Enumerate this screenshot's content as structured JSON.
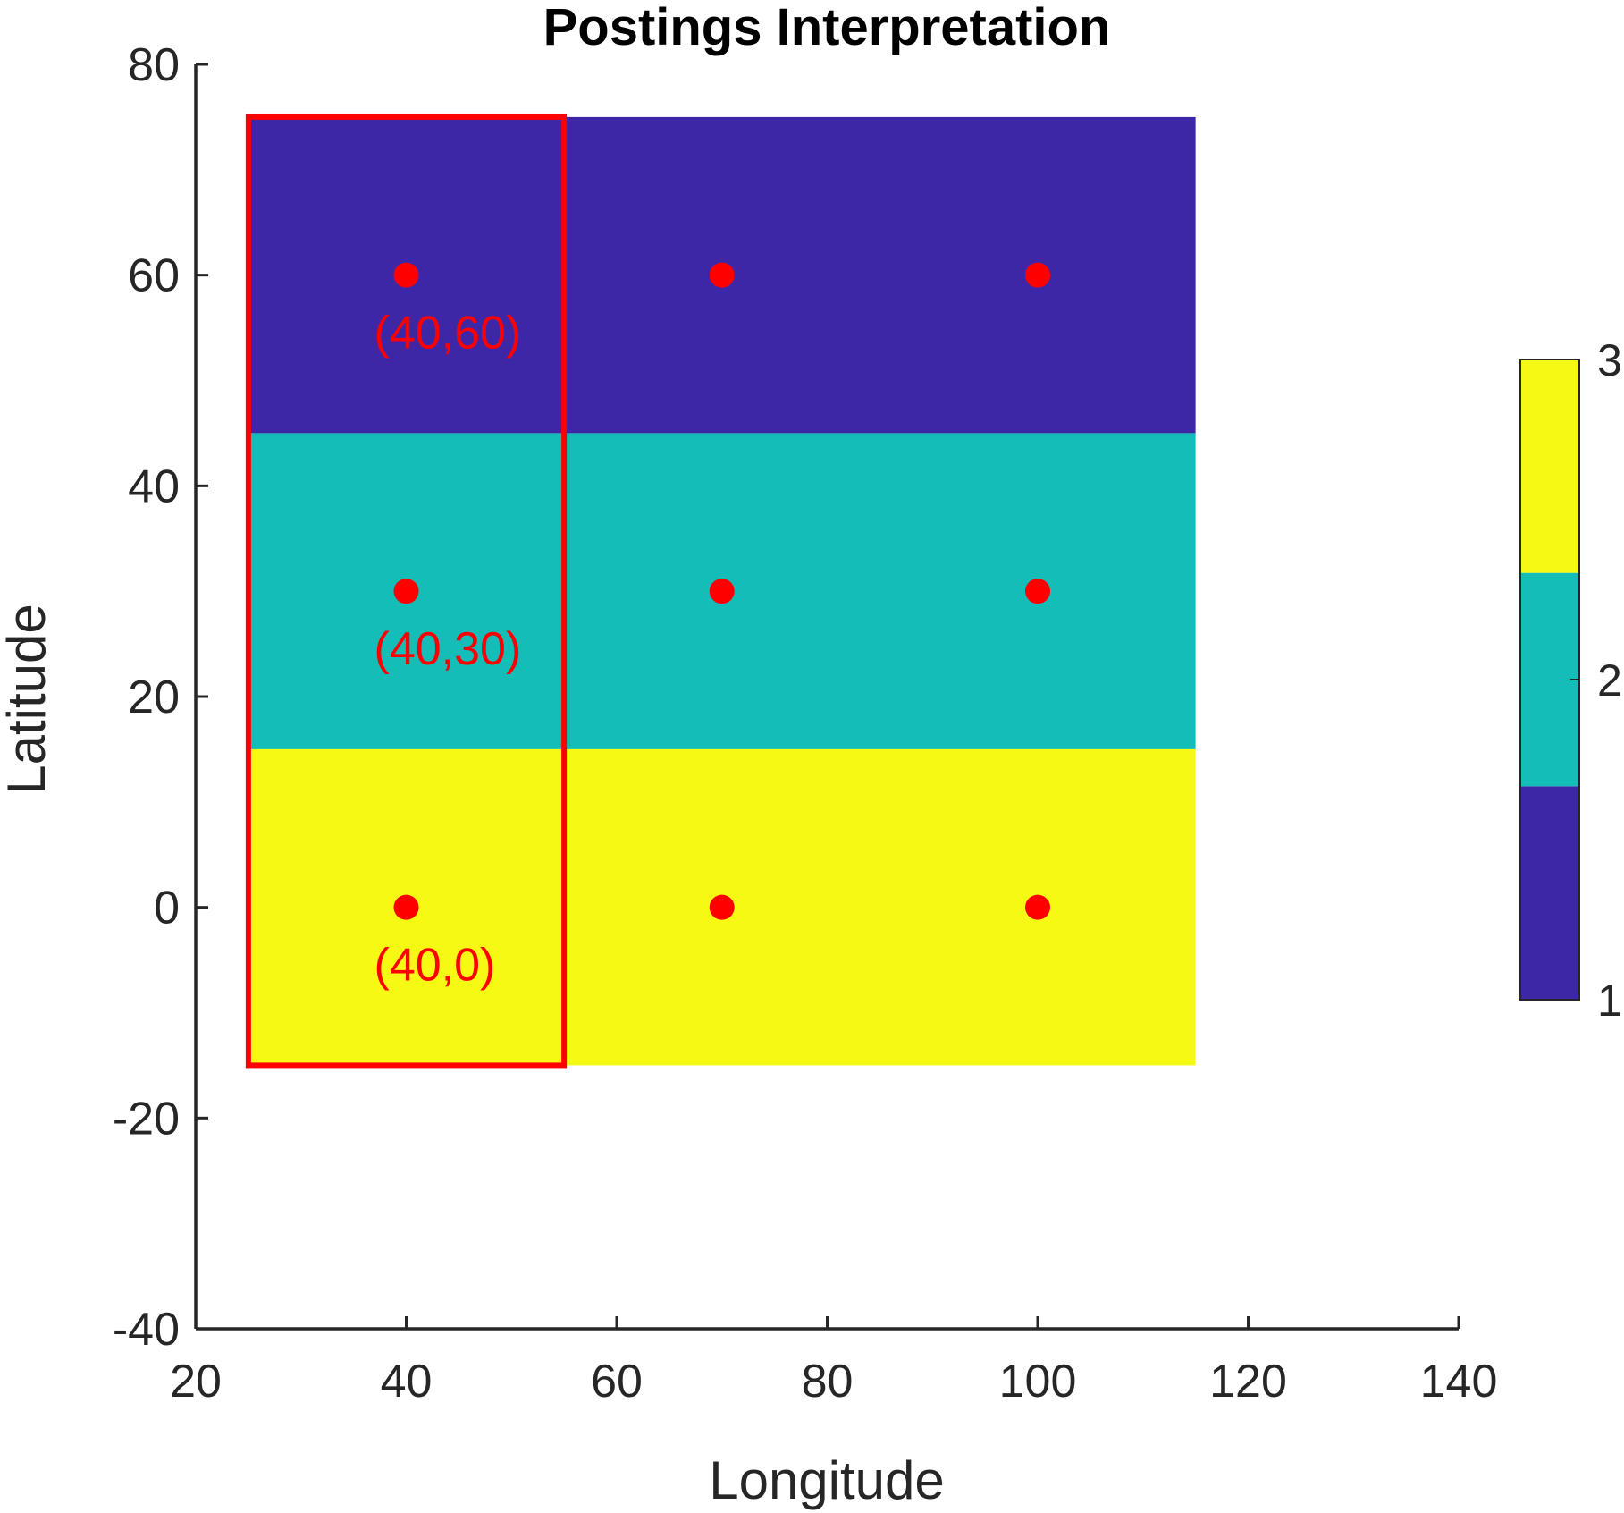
{
  "chart_data": {
    "type": "heatmap",
    "title": "Postings Interpretation",
    "xlabel": "Longitude",
    "ylabel": "Latitude",
    "xlim": [
      20,
      140
    ],
    "ylim": [
      -40,
      80
    ],
    "xticks": [
      "20",
      "40",
      "60",
      "80",
      "100",
      "120",
      "140"
    ],
    "yticks": [
      "-40",
      "-20",
      "0",
      "20",
      "40",
      "60",
      "80"
    ],
    "cells": [
      {
        "lon": [
          25,
          115
        ],
        "lat": [
          45,
          75
        ],
        "value": 1
      },
      {
        "lon": [
          25,
          115
        ],
        "lat": [
          15,
          45
        ],
        "value": 2
      },
      {
        "lon": [
          25,
          115
        ],
        "lat": [
          -15,
          15
        ],
        "value": 3
      }
    ],
    "points": [
      {
        "x": 40,
        "y": 60
      },
      {
        "x": 70,
        "y": 60
      },
      {
        "x": 100,
        "y": 60
      },
      {
        "x": 40,
        "y": 30
      },
      {
        "x": 70,
        "y": 30
      },
      {
        "x": 100,
        "y": 30
      },
      {
        "x": 40,
        "y": 0
      },
      {
        "x": 70,
        "y": 0
      },
      {
        "x": 100,
        "y": 0
      }
    ],
    "annotations": [
      {
        "x": 40,
        "y": 60,
        "text": "(40,60)"
      },
      {
        "x": 40,
        "y": 30,
        "text": "(40,30)"
      },
      {
        "x": 40,
        "y": 0,
        "text": "(40,0)"
      }
    ],
    "highlight_box": {
      "lon": [
        25,
        55
      ],
      "lat": [
        -15,
        75
      ]
    },
    "colorbar": {
      "ticks": [
        "1",
        "2",
        "3"
      ],
      "min": 1,
      "max": 3,
      "colors": [
        "#3d27a7",
        "#14bdb8",
        "#f6f914"
      ]
    },
    "colors": {
      "value_1": "#3d27a7",
      "value_2": "#14bdb8",
      "value_3": "#f6f914",
      "marker": "#ff0000",
      "highlight": "#ff0000",
      "axis": "#262626"
    }
  }
}
